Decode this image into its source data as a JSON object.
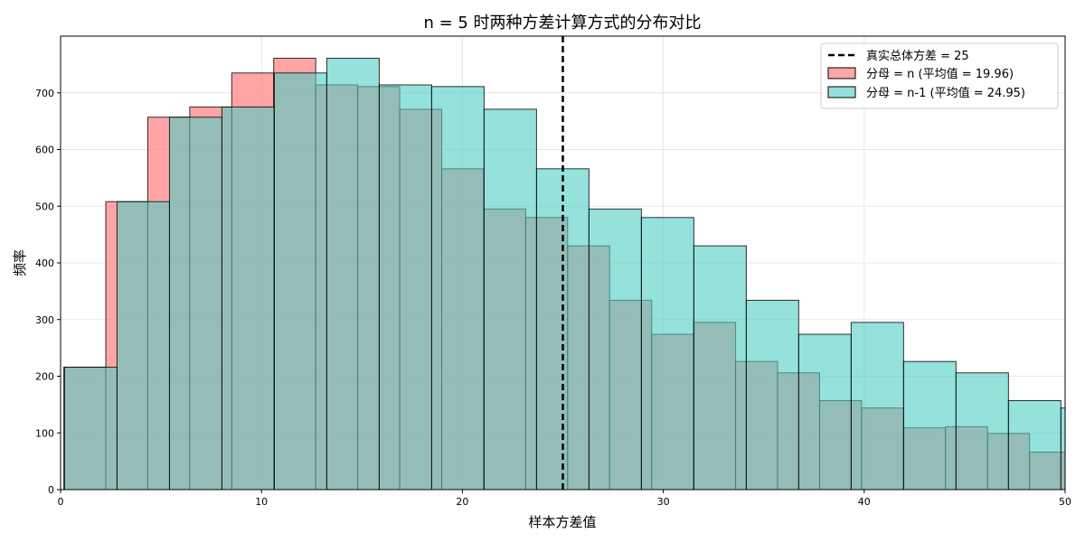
{
  "chart_data": {
    "type": "bar",
    "title": "n = 5 时两种方差计算方式的分布对比",
    "xlabel": "样本方差值",
    "ylabel": "频率",
    "xlim": [
      0,
      50
    ],
    "ylim": [
      0,
      800
    ],
    "xticks": [
      0,
      10,
      20,
      30,
      40,
      50
    ],
    "yticks": [
      0,
      100,
      200,
      300,
      400,
      500,
      600,
      700
    ],
    "grid": true,
    "legend_position": "top-right",
    "reference_line": {
      "x": 25,
      "label": "真实总体方差 = 25",
      "color": "#000000",
      "style": "dashed"
    },
    "series": [
      {
        "name": "分母 = n (平均值 = 19.96)",
        "color": "#ff7f7f",
        "alpha": 0.7,
        "bins": [
          {
            "x0": 0.16,
            "x1": 2.25,
            "value": 216
          },
          {
            "x0": 2.25,
            "x1": 4.34,
            "value": 508
          },
          {
            "x0": 4.34,
            "x1": 6.43,
            "value": 657
          },
          {
            "x0": 6.43,
            "x1": 8.52,
            "value": 675
          },
          {
            "x0": 8.52,
            "x1": 10.61,
            "value": 735
          },
          {
            "x0": 10.61,
            "x1": 12.7,
            "value": 761
          },
          {
            "x0": 12.7,
            "x1": 14.79,
            "value": 714
          },
          {
            "x0": 14.79,
            "x1": 16.88,
            "value": 711
          },
          {
            "x0": 16.88,
            "x1": 18.97,
            "value": 671
          },
          {
            "x0": 18.97,
            "x1": 21.06,
            "value": 566
          },
          {
            "x0": 21.06,
            "x1": 23.15,
            "value": 495
          },
          {
            "x0": 23.15,
            "x1": 25.24,
            "value": 480
          },
          {
            "x0": 25.24,
            "x1": 27.33,
            "value": 430
          },
          {
            "x0": 27.33,
            "x1": 29.42,
            "value": 334
          },
          {
            "x0": 29.42,
            "x1": 31.51,
            "value": 274
          },
          {
            "x0": 31.51,
            "x1": 33.6,
            "value": 295
          },
          {
            "x0": 33.6,
            "x1": 35.69,
            "value": 226
          },
          {
            "x0": 35.69,
            "x1": 37.78,
            "value": 206
          },
          {
            "x0": 37.78,
            "x1": 39.87,
            "value": 157
          },
          {
            "x0": 39.87,
            "x1": 41.96,
            "value": 144
          },
          {
            "x0": 41.96,
            "x1": 44.05,
            "value": 109
          },
          {
            "x0": 44.05,
            "x1": 46.14,
            "value": 111
          },
          {
            "x0": 46.14,
            "x1": 48.23,
            "value": 99
          },
          {
            "x0": 48.23,
            "x1": 50.32,
            "value": 66
          }
        ]
      },
      {
        "name": "分母 = n-1 (平均值 = 24.95)",
        "color": "#4ecdc4",
        "alpha": 0.6,
        "bins": [
          {
            "x0": 0.2,
            "x1": 2.81,
            "value": 216
          },
          {
            "x0": 2.81,
            "x1": 5.42,
            "value": 508
          },
          {
            "x0": 5.42,
            "x1": 8.03,
            "value": 657
          },
          {
            "x0": 8.03,
            "x1": 10.64,
            "value": 675
          },
          {
            "x0": 10.64,
            "x1": 13.25,
            "value": 735
          },
          {
            "x0": 13.25,
            "x1": 15.86,
            "value": 761
          },
          {
            "x0": 15.86,
            "x1": 18.47,
            "value": 714
          },
          {
            "x0": 18.47,
            "x1": 21.08,
            "value": 711
          },
          {
            "x0": 21.08,
            "x1": 23.69,
            "value": 671
          },
          {
            "x0": 23.69,
            "x1": 26.3,
            "value": 566
          },
          {
            "x0": 26.3,
            "x1": 28.91,
            "value": 495
          },
          {
            "x0": 28.91,
            "x1": 31.52,
            "value": 480
          },
          {
            "x0": 31.52,
            "x1": 34.13,
            "value": 430
          },
          {
            "x0": 34.13,
            "x1": 36.74,
            "value": 334
          },
          {
            "x0": 36.74,
            "x1": 39.35,
            "value": 274
          },
          {
            "x0": 39.35,
            "x1": 41.96,
            "value": 295
          },
          {
            "x0": 41.96,
            "x1": 44.57,
            "value": 226
          },
          {
            "x0": 44.57,
            "x1": 47.18,
            "value": 206
          },
          {
            "x0": 47.18,
            "x1": 49.79,
            "value": 157
          },
          {
            "x0": 49.79,
            "x1": 52.4,
            "value": 144
          }
        ]
      }
    ]
  }
}
